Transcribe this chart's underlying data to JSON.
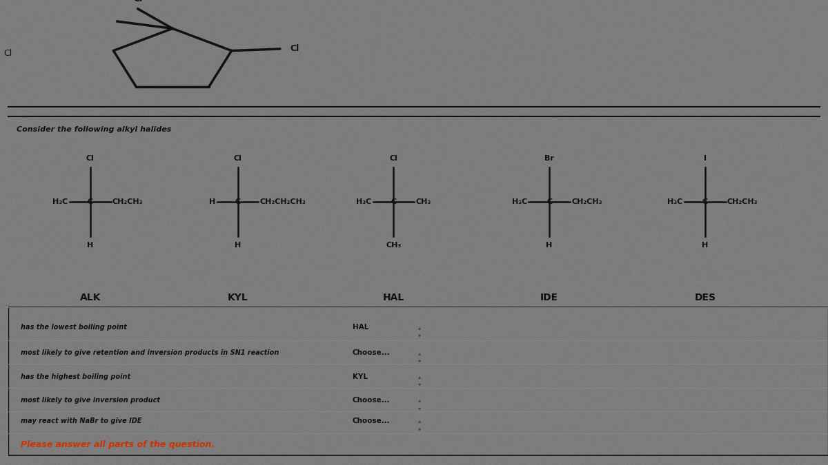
{
  "bg_color": "#7a7a7a",
  "title": "Consider the following alkyl halides",
  "questions": [
    {
      "text": "has the lowest boiling point",
      "answer": "HAL",
      "has_arrow": true
    },
    {
      "text": "most likely to give retention and inversion products in SN1 reaction",
      "answer": "Choose...",
      "has_arrow": true
    },
    {
      "text": "has the highest boiling point",
      "answer": "KYL",
      "has_arrow": true
    },
    {
      "text": "most likely to give inversion product",
      "answer": "Choose...",
      "has_arrow": true
    },
    {
      "text": "may react with NaBr to give IDE",
      "answer": "Choose...",
      "has_arrow": true
    }
  ],
  "footer": "Please answer all parts of the question.",
  "text_color": "#111111",
  "line_color": "#111111",
  "label_names": [
    "ALK",
    "KYL",
    "HAL",
    "IDE",
    "DES"
  ]
}
